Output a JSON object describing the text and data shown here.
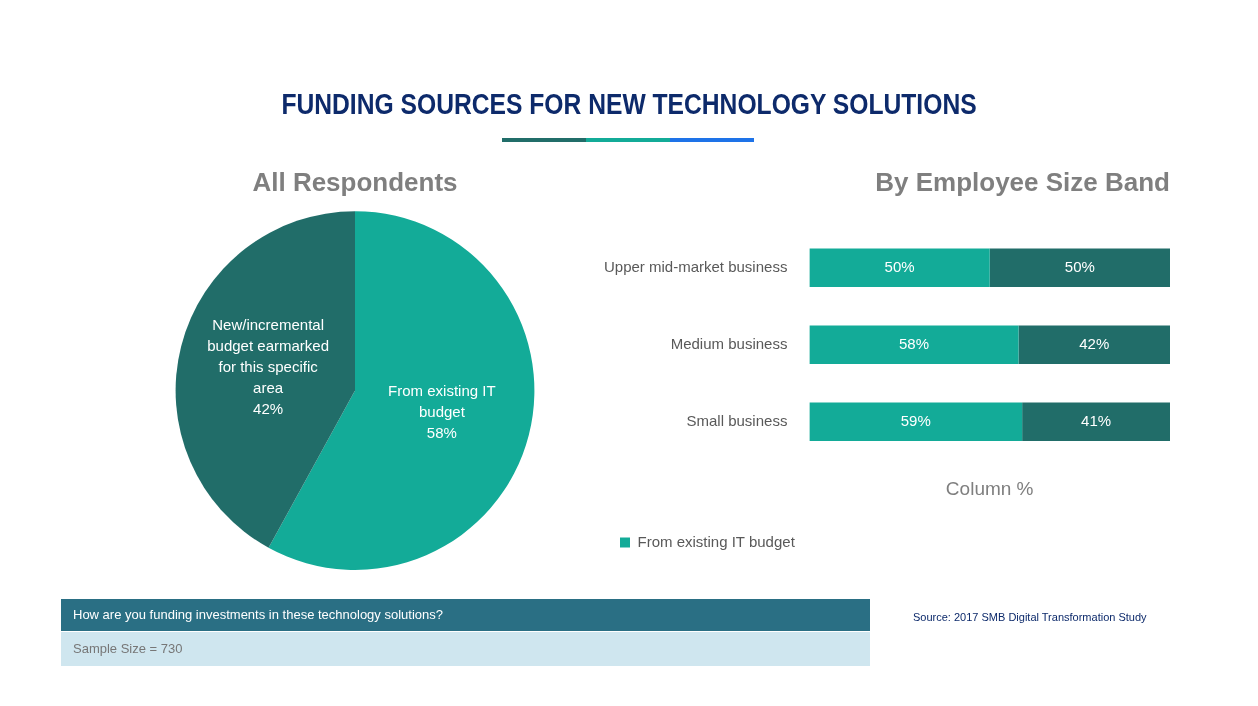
{
  "chart_data": [
    {
      "type": "pie",
      "title": "FUNDING SOURCES FOR NEW TECHNOLOGY SOLUTIONS",
      "subtitle": "All Respondents",
      "categories": [
        "From existing IT budget",
        "New/incremental budget earmarked for this specific area"
      ],
      "values": [
        58,
        42
      ],
      "colors": [
        "#13ab98",
        "#216d69"
      ],
      "value_labels": [
        "58%",
        "42%"
      ],
      "annotations": [
        "How are you funding investments in these technology solutions?",
        "Sample Size = 730"
      ]
    },
    {
      "type": "bar",
      "orientation": "horizontal",
      "stacked": true,
      "title": "By Employee Size Band",
      "xlabel": "Column %",
      "categories": [
        "Upper mid-market business",
        "Medium business",
        "Small business"
      ],
      "xlim": [
        0,
        100
      ],
      "tick_labels": "y",
      "legend": "bottom",
      "series": [
        {
          "name": "From existing IT budget",
          "color": "#13ab98",
          "values": [
            50,
            58,
            59
          ],
          "value_labels": [
            "50%",
            "58%",
            "59%"
          ]
        },
        {
          "color": "#216d69",
          "values": [
            50,
            42,
            41
          ],
          "value_labels": [
            "50%",
            "42%",
            "41%"
          ]
        }
      ],
      "annotations": [
        "Source: 2017 SMB Digital Transformation Study"
      ]
    }
  ]
}
